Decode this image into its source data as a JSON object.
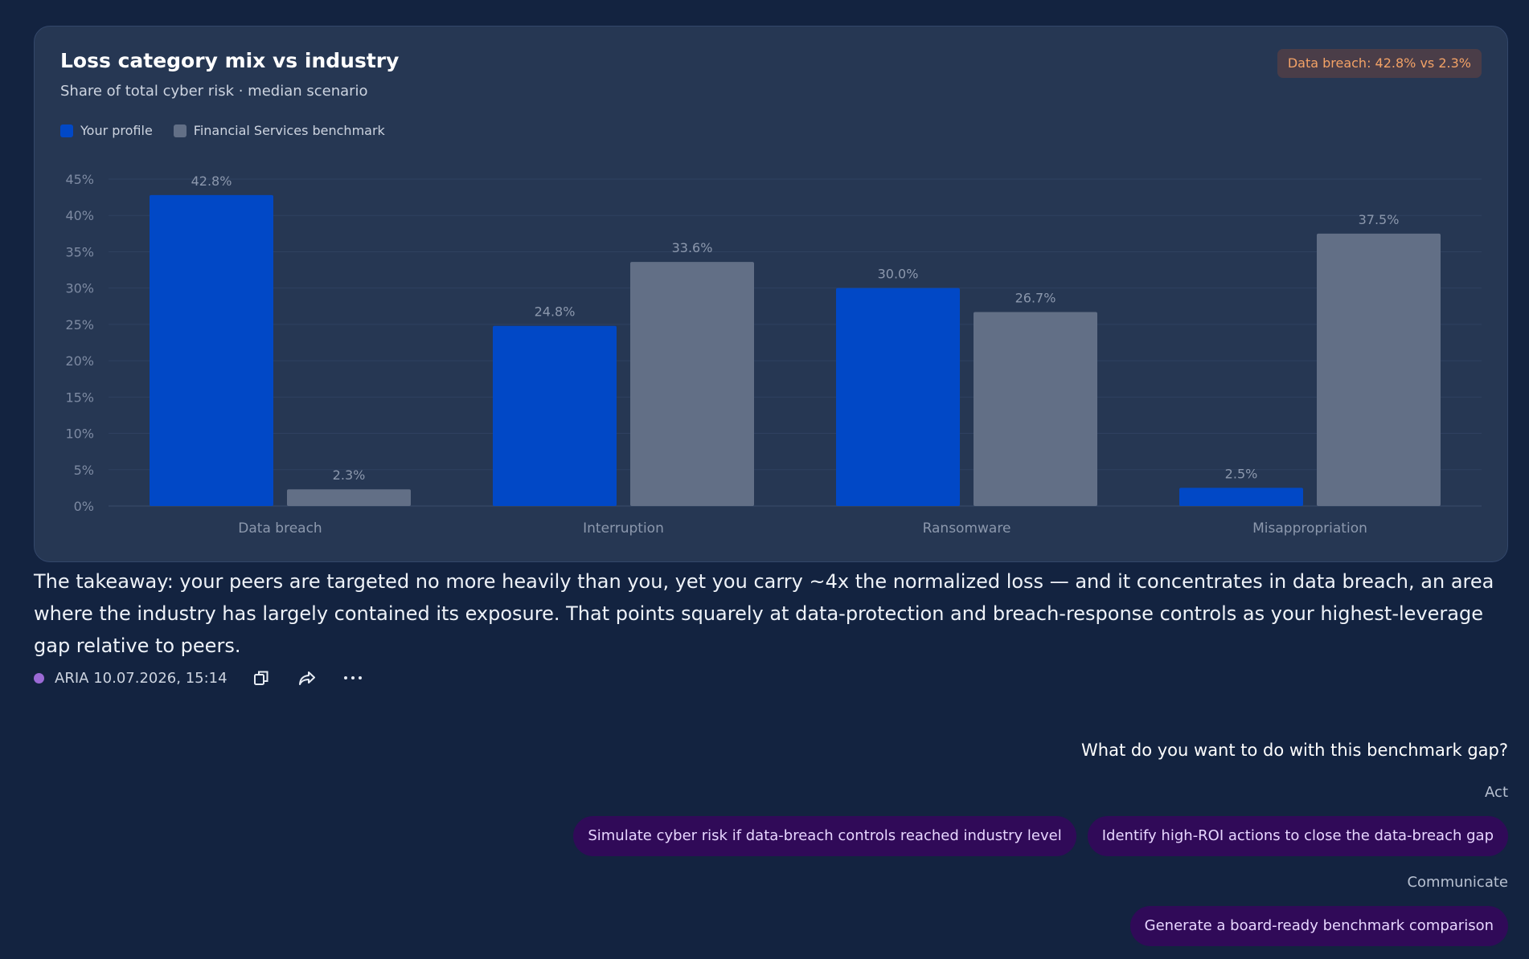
{
  "card": {
    "badge": "Data breach: 42.8% vs 2.3%"
  },
  "chart_data": {
    "type": "bar",
    "title": "Loss category mix vs industry",
    "subtitle": "Share of total cyber risk · median scenario",
    "categories": [
      "Data breach",
      "Interruption",
      "Ransomware",
      "Misappropriation"
    ],
    "series": [
      {
        "name": "Your profile",
        "values": [
          42.8,
          24.8,
          30.0,
          2.5
        ],
        "labels": [
          "42.8%",
          "24.8%",
          "30.0%",
          "2.5%"
        ],
        "color": "#0148c6"
      },
      {
        "name": "Financial Services benchmark",
        "values": [
          2.3,
          33.6,
          26.7,
          37.5
        ],
        "labels": [
          "2.3%",
          "33.6%",
          "26.7%",
          "37.5%"
        ],
        "color": "#626f86"
      }
    ],
    "ylim": [
      0,
      45
    ],
    "yticks": [
      "0%",
      "5%",
      "10%",
      "15%",
      "20%",
      "25%",
      "30%",
      "35%",
      "40%",
      "45%"
    ],
    "grid": true,
    "legend_position": "top-left"
  },
  "takeaway": "The takeaway: your peers are targeted no more heavily than you, yet you carry ~4x the normalized loss — and it concentrates in data breach, an area where the industry has largely contained its exposure. That points squarely at data-protection and breach-response controls as your highest-leverage gap relative to peers.",
  "meta": {
    "author": "ARIA",
    "timestamp": "10.07.2026, 15:14",
    "author_dot_color": "#9b6ad6"
  },
  "followup": {
    "question": "What do you want to do with this benchmark gap?",
    "act_label": "Act",
    "act_options": [
      "Simulate cyber risk if data-breach controls reached industry level",
      "Identify high-ROI actions to close the data-breach gap"
    ],
    "communicate_label": "Communicate",
    "communicate_options": [
      "Generate a board-ready benchmark comparison"
    ]
  },
  "icons": {
    "copy": "copy-icon",
    "share": "share-icon",
    "more": "more-icon"
  }
}
